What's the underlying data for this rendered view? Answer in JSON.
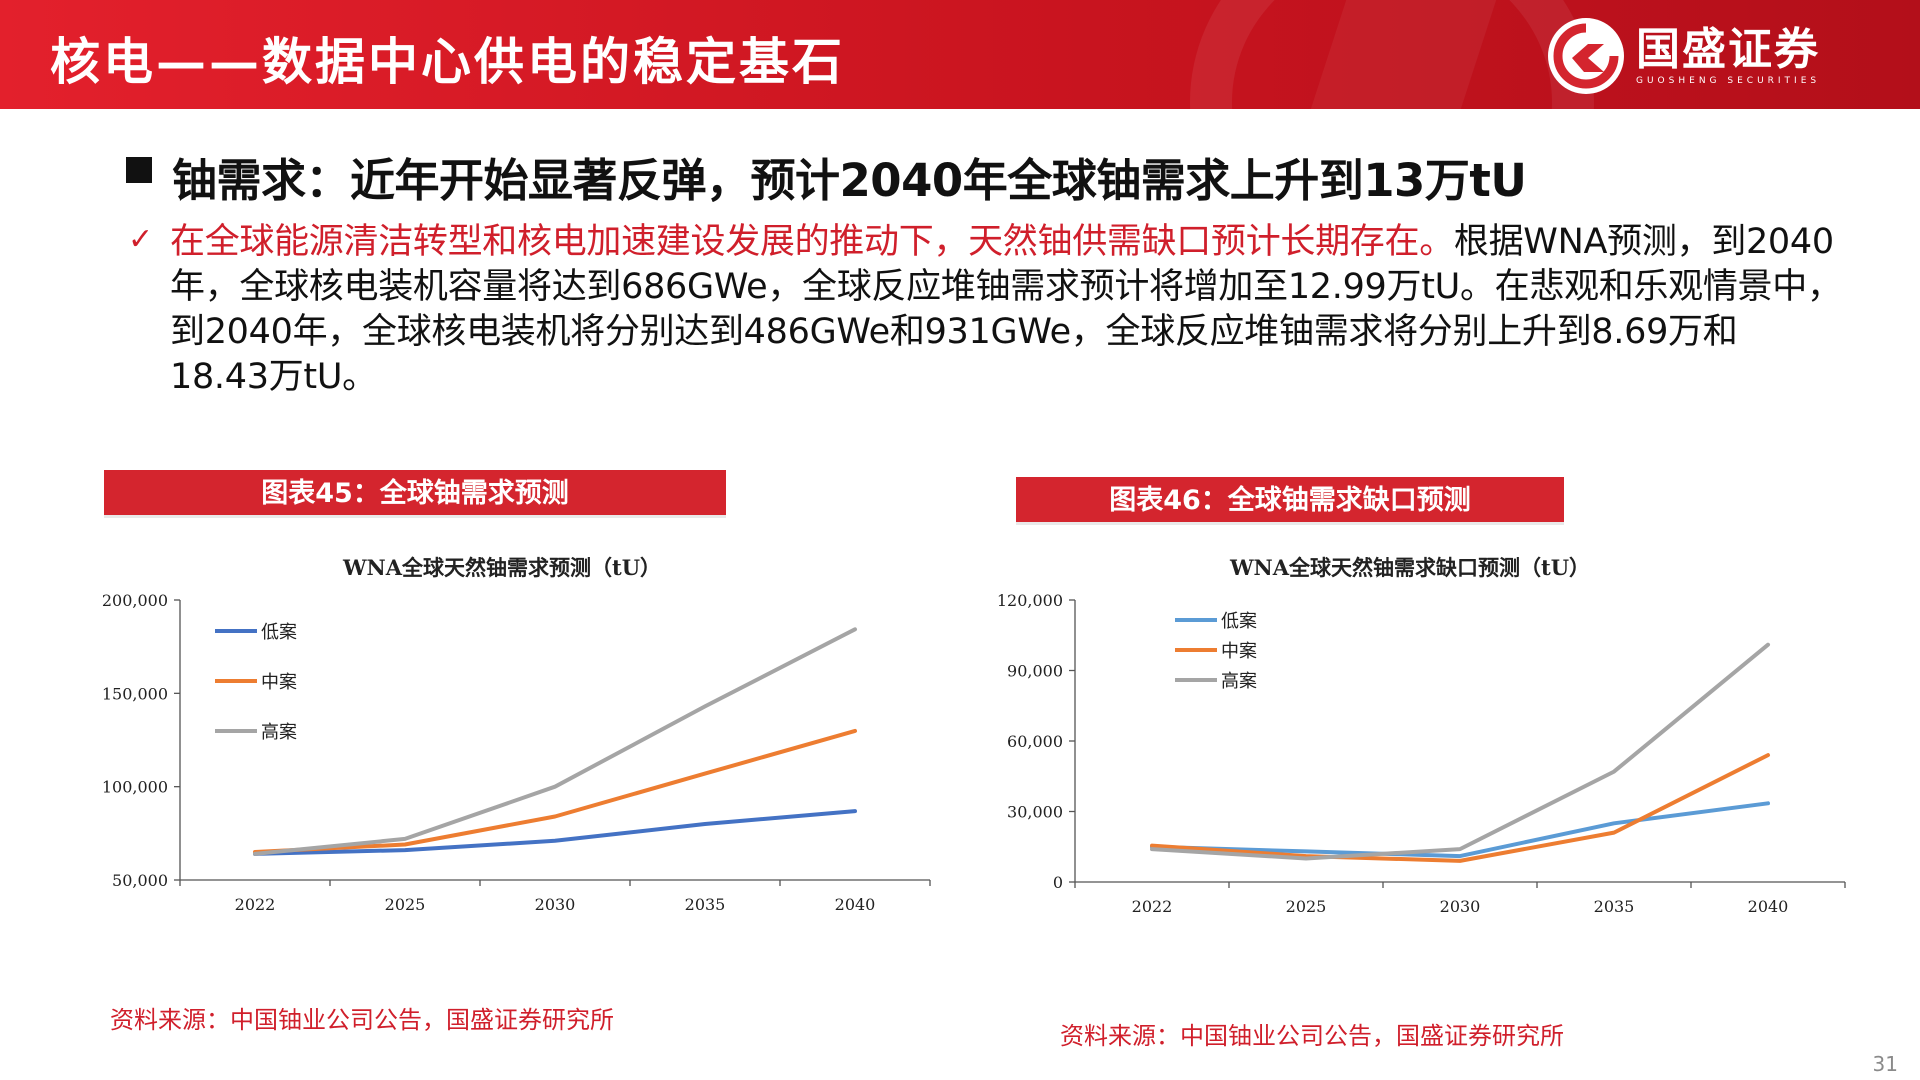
{
  "header": {
    "title": "核电——数据中心供电的稳定基石",
    "brand_cn": "国盛证券",
    "brand_en": "GUOSHENG SECURITIES"
  },
  "headline": "铀需求：近年开始显著反弹，预计2040年全球铀需求上升到13万tU",
  "body": {
    "check_icon": "✓",
    "red_text": "在全球能源清洁转型和核电加速建设发展的推动下，天然铀供需缺口预计长期存在。",
    "line1_rest": "根据WNA预测，到2040",
    "line2": "年，全球核电装机容量将达到686GWe，全球反应堆铀需求预计将增加至12.99万tU。在悲观和乐观情景中，",
    "line3": "到2040年，全球核电装机将分别达到486GWe和931GWe，全球反应堆铀需求将分别上升到8.69万和",
    "line4": "18.43万tU。"
  },
  "figures": {
    "left_title": "图表45：全球铀需求预测",
    "right_title": "图表46：全球铀需求缺口预测",
    "left_source": "资料来源：中国铀业公司公告，国盛证券研究所",
    "right_source": "资料来源：中国铀业公司公告，国盛证券研究所"
  },
  "page_number": "31",
  "colors": {
    "brand_red": "#d4252e",
    "low": "#4472c4",
    "mid": "#ed7d31",
    "high": "#a5a5a5",
    "low_gap": "#5b9bd5"
  },
  "chart_data": [
    {
      "type": "line",
      "title": "WNA全球天然铀需求预测（tU）",
      "categories": [
        "2022",
        "2025",
        "2030",
        "2035",
        "2040"
      ],
      "ylim": [
        50000,
        200000
      ],
      "yticks": [
        "50,000",
        "100,000",
        "150,000",
        "200,000"
      ],
      "ytick_values": [
        50000,
        100000,
        150000,
        200000
      ],
      "legend_position": "top-left",
      "series": [
        {
          "name": "低案",
          "color": "#4472c4",
          "values": [
            64000,
            66000,
            71000,
            80000,
            86900
          ]
        },
        {
          "name": "中案",
          "color": "#ed7d31",
          "values": [
            65000,
            69000,
            84000,
            107000,
            129900
          ]
        },
        {
          "name": "高案",
          "color": "#a5a5a5",
          "values": [
            64000,
            72000,
            100000,
            143000,
            184300
          ]
        }
      ]
    },
    {
      "type": "line",
      "title": "WNA全球天然铀需求缺口预测（tU）",
      "categories": [
        "2022",
        "2025",
        "2030",
        "2035",
        "2040"
      ],
      "ylim": [
        0,
        120000
      ],
      "yticks": [
        "0",
        "30,000",
        "60,000",
        "90,000",
        "120,000"
      ],
      "ytick_values": [
        0,
        30000,
        60000,
        90000,
        120000
      ],
      "legend_position": "top-left",
      "series": [
        {
          "name": "低案",
          "color": "#5b9bd5",
          "values": [
            15000,
            13000,
            11000,
            25000,
            33500
          ]
        },
        {
          "name": "中案",
          "color": "#ed7d31",
          "values": [
            15500,
            11000,
            9000,
            21000,
            54000
          ]
        },
        {
          "name": "高案",
          "color": "#a5a5a5",
          "values": [
            14000,
            10000,
            14000,
            47000,
            101000
          ]
        }
      ]
    }
  ]
}
